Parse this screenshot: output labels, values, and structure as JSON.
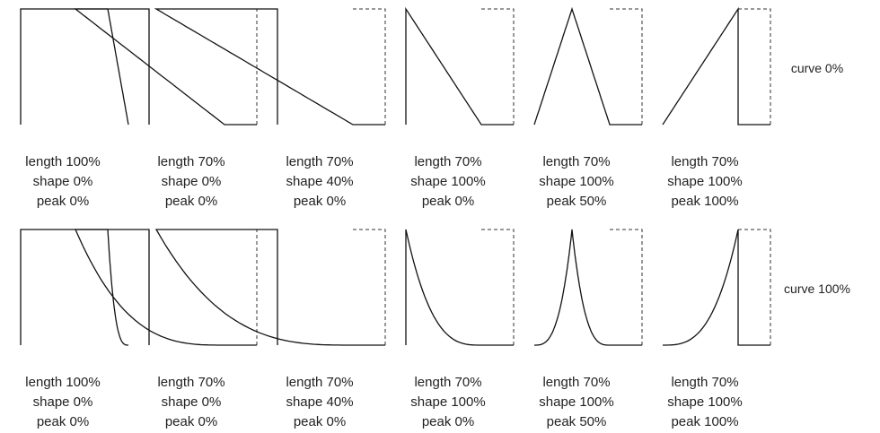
{
  "rows": [
    {
      "label": "curve 0%",
      "curve": 0,
      "cells": [
        {
          "length": 100,
          "shape": 0,
          "peak": 0,
          "lines": [
            "length 100%",
            "shape 0%",
            "peak 0%"
          ]
        },
        {
          "length": 70,
          "shape": 0,
          "peak": 0,
          "lines": [
            "length 70%",
            "shape 0%",
            "peak 0%"
          ]
        },
        {
          "length": 70,
          "shape": 40,
          "peak": 0,
          "lines": [
            "length 70%",
            "shape 40%",
            "peak 0%"
          ]
        },
        {
          "length": 70,
          "shape": 100,
          "peak": 0,
          "lines": [
            "length 70%",
            "shape 100%",
            "peak 0%"
          ]
        },
        {
          "length": 70,
          "shape": 100,
          "peak": 50,
          "lines": [
            "length 70%",
            "shape 100%",
            "peak 50%"
          ]
        },
        {
          "length": 70,
          "shape": 100,
          "peak": 100,
          "lines": [
            "length 70%",
            "shape 100%",
            "peak 100%"
          ]
        }
      ]
    },
    {
      "label": "curve 100%",
      "curve": 100,
      "cells": [
        {
          "length": 100,
          "shape": 0,
          "peak": 0,
          "lines": [
            "length 100%",
            "shape 0%",
            "peak 0%"
          ]
        },
        {
          "length": 70,
          "shape": 0,
          "peak": 0,
          "lines": [
            "length 70%",
            "shape 0%",
            "peak 0%"
          ]
        },
        {
          "length": 70,
          "shape": 40,
          "peak": 0,
          "lines": [
            "length 70%",
            "shape 40%",
            "peak 0%"
          ]
        },
        {
          "length": 70,
          "shape": 100,
          "peak": 0,
          "lines": [
            "length 70%",
            "shape 100%",
            "peak 0%"
          ]
        },
        {
          "length": 70,
          "shape": 100,
          "peak": 50,
          "lines": [
            "length 70%",
            "shape 100%",
            "peak 50%"
          ]
        },
        {
          "length": 70,
          "shape": 100,
          "peak": 100,
          "lines": [
            "length 70%",
            "shape 100%",
            "peak 100%"
          ]
        }
      ]
    }
  ]
}
